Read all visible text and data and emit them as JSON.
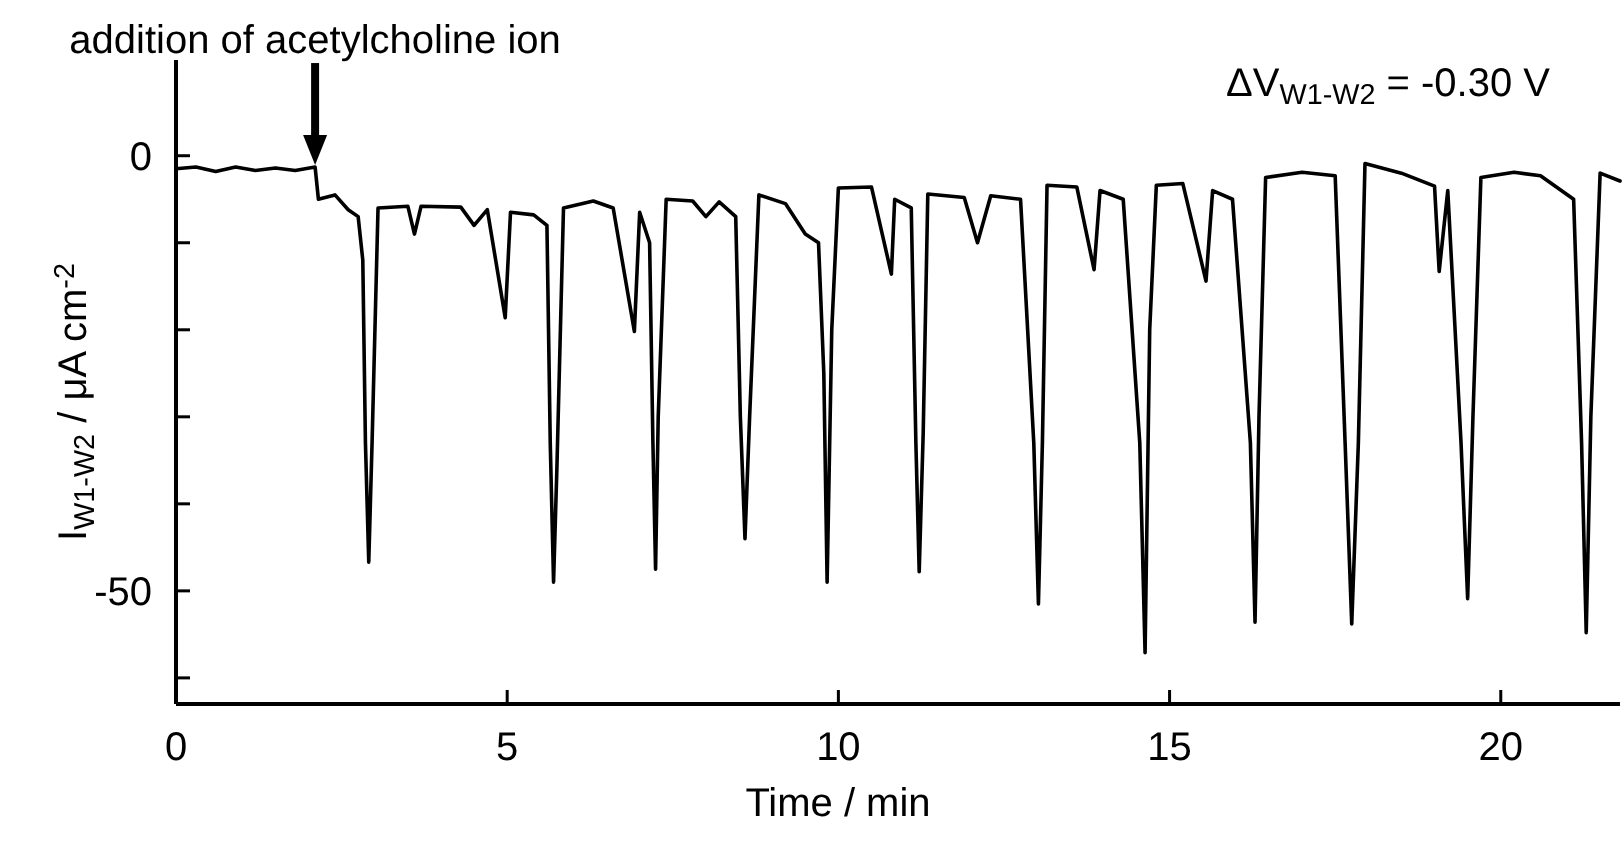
{
  "chart_data": {
    "type": "line",
    "xlabel": "Time / min",
    "ylabel": "I$_{W1-W2}$ / μA cm$^{-2}$",
    "annotations": [
      {
        "text": "addition of acetylcholine ion",
        "x": 2.1,
        "y": -1.3
      },
      "ΔV$_{W1-W2}$ = -0.30 V"
    ],
    "xlim": [
      0,
      21.8
    ],
    "xticks": [
      0,
      5,
      10,
      15,
      20
    ],
    "ylim": [
      -63,
      11
    ],
    "yticks": [
      0,
      {
        "value": -10,
        "label": null
      },
      {
        "value": -20,
        "label": null
      },
      {
        "value": -30,
        "label": null
      },
      {
        "value": -40,
        "label": null
      },
      -50,
      {
        "value": -60,
        "label": null
      }
    ],
    "marker": "none",
    "line_style": "solid",
    "series": [
      {
        "color": "#000000",
        "x": [
          0,
          0.3,
          0.6,
          0.9,
          1.2,
          1.5,
          1.8,
          2.1,
          2.15,
          2.4,
          2.6,
          2.75,
          2.82,
          2.86,
          2.91,
          2.96,
          3.05,
          3.5,
          3.6,
          3.7,
          4.3,
          4.5,
          4.7,
          4.97,
          5.05,
          5.4,
          5.6,
          5.65,
          5.7,
          5.75,
          5.85,
          6.3,
          6.6,
          6.92,
          7.0,
          7.15,
          7.2,
          7.24,
          7.28,
          7.4,
          7.8,
          8.0,
          8.2,
          8.45,
          8.52,
          8.59,
          8.66,
          8.8,
          9.2,
          9.5,
          9.7,
          9.78,
          9.83,
          9.9,
          10.0,
          10.5,
          10.8,
          10.85,
          11.1,
          11.17,
          11.22,
          11.28,
          11.35,
          11.9,
          12.1,
          12.3,
          12.75,
          12.95,
          13.02,
          13.08,
          13.15,
          13.6,
          13.86,
          13.95,
          14.3,
          14.55,
          14.63,
          14.7,
          14.8,
          15.2,
          15.55,
          15.65,
          15.95,
          16.22,
          16.29,
          16.35,
          16.45,
          17.0,
          17.5,
          17.65,
          17.75,
          17.85,
          17.95,
          18.5,
          19.0,
          19.07,
          19.2,
          19.4,
          19.5,
          19.58,
          19.7,
          20.2,
          20.6,
          21.1,
          21.22,
          21.29,
          21.36,
          21.5,
          21.8
        ],
        "values": [
          -1.5,
          -1.3,
          -1.8,
          -1.3,
          -1.7,
          -1.4,
          -1.7,
          -1.3,
          -5.0,
          -4.5,
          -6.2,
          -7.0,
          -12,
          -33,
          -46.7,
          -33,
          -6.0,
          -5.8,
          -9,
          -5.8,
          -5.9,
          -8,
          -6.2,
          -18.6,
          -6.5,
          -6.8,
          -8,
          -33,
          -49.0,
          -36,
          -6.0,
          -5.2,
          -6.0,
          -20.2,
          -6.5,
          -10,
          -33,
          -47.5,
          -30,
          -5.0,
          -5.2,
          -7,
          -5.3,
          -7,
          -30,
          -44.0,
          -30,
          -4.5,
          -5.5,
          -9,
          -10,
          -25,
          -49.0,
          -20,
          -3.7,
          -3.6,
          -13.6,
          -5.0,
          -6,
          -33,
          -47.8,
          -32,
          -4.4,
          -4.8,
          -10,
          -4.6,
          -5,
          -33,
          -51.5,
          -33,
          -3.4,
          -3.6,
          -13.1,
          -4.0,
          -5,
          -33,
          -57.1,
          -20,
          -3.4,
          -3.2,
          -14.4,
          -4.0,
          -5,
          -33,
          -53.6,
          -30,
          -2.5,
          -1.9,
          -2.3,
          -33,
          -53.8,
          -33,
          -0.9,
          -2.0,
          -3.5,
          -13.3,
          -4,
          -33,
          -50.9,
          -30,
          -2.5,
          -1.9,
          -2.3,
          -5,
          -33,
          -54.8,
          -30,
          -2.0,
          -2.9
        ]
      }
    ]
  }
}
